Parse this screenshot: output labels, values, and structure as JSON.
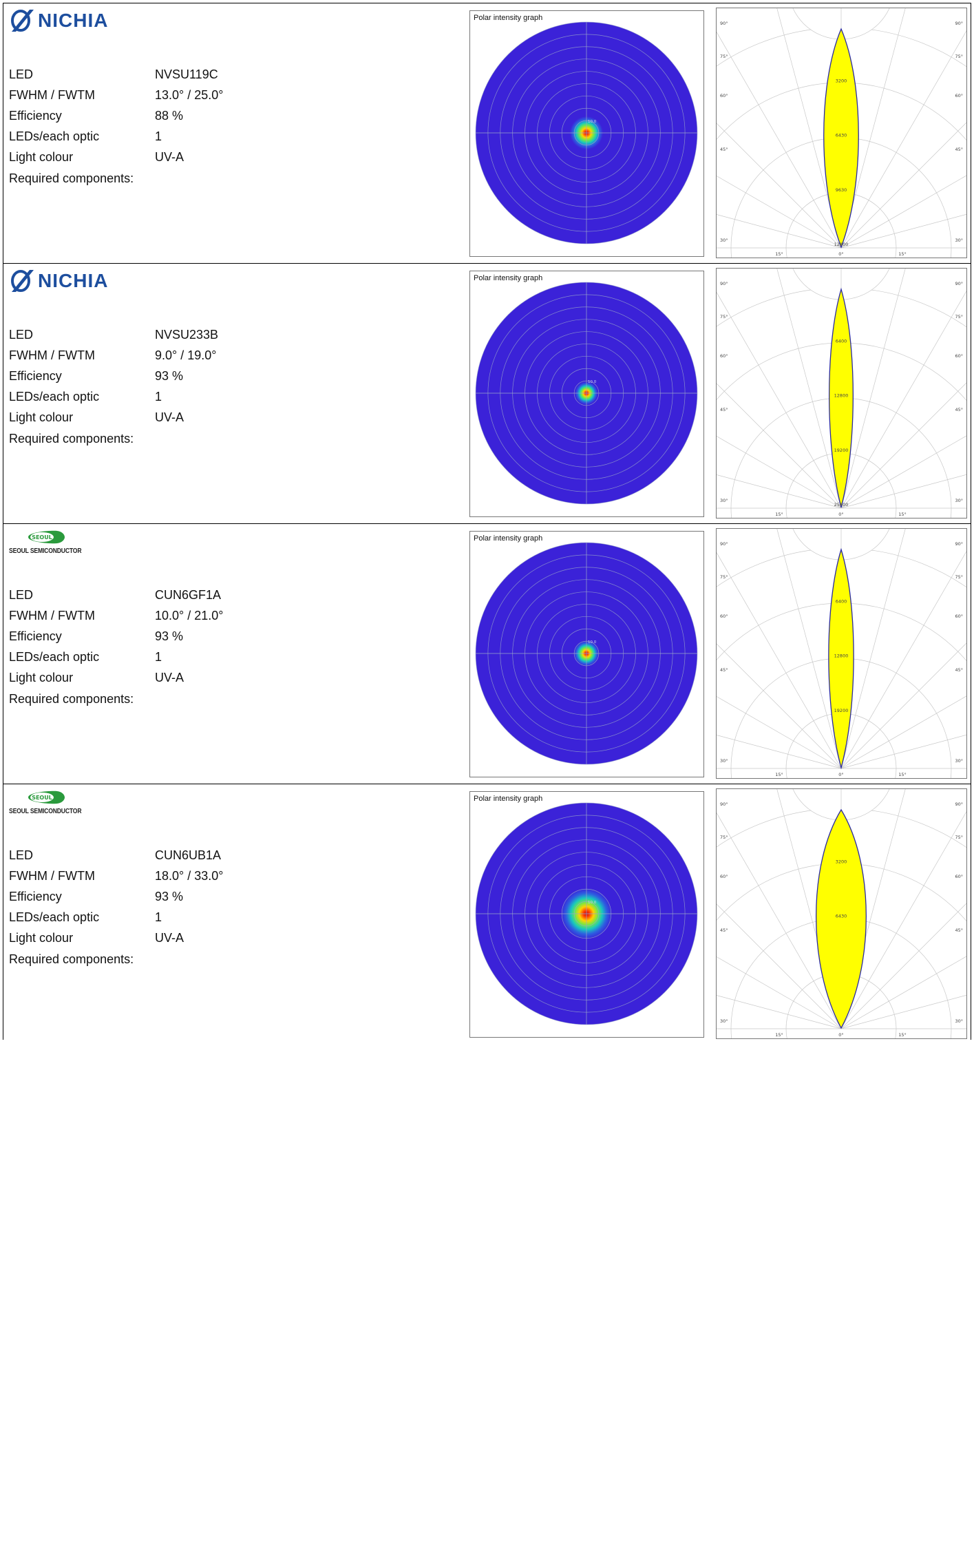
{
  "labels": {
    "led": "LED",
    "fwhm": "FWHM / FWTM",
    "efficiency": "Efficiency",
    "leds_per_optic": "LEDs/each optic",
    "light_colour": "Light colour",
    "required": "Required components:"
  },
  "polar_title": "Polar intensity graph",
  "polar_ring_label": "10.0",
  "angle_labels": [
    "90°",
    "75°",
    "60°",
    "45°",
    "30°",
    "15°",
    "0°"
  ],
  "colors": {
    "nichia_blue": "#1d4e9e",
    "seoul_green": "#2a9a3c",
    "polar_field": "#3b22d8",
    "curve_fill": "#ffff00",
    "curve_stroke": "#2a2aa0"
  },
  "rows": [
    {
      "brand": "NICHIA",
      "led": "NVSU119C",
      "fwhm": "13.0° / 25.0°",
      "efficiency": "88 %",
      "leds_per_optic": "1",
      "light_colour": "UV-A",
      "spot_size": 0.13,
      "curve_half_width_deg": 3.2,
      "curve_labels": [
        "3200",
        "6430",
        "9630",
        "12800"
      ]
    },
    {
      "brand": "NICHIA",
      "led": "NVSU233B",
      "fwhm": "9.0° / 19.0°",
      "efficiency": "93 %",
      "leds_per_optic": "1",
      "light_colour": "UV-A",
      "spot_size": 0.09,
      "curve_half_width_deg": 2.2,
      "curve_labels": [
        "6400",
        "12800",
        "19200",
        "25600"
      ]
    },
    {
      "brand": "SEOUL SEMICONDUCTOR",
      "badge": "SEOUL",
      "led": "CUN6GF1A",
      "fwhm": "10.0° / 21.0°",
      "efficiency": "93 %",
      "leds_per_optic": "1",
      "light_colour": "UV-A",
      "spot_size": 0.1,
      "curve_half_width_deg": 2.3,
      "curve_labels": [
        "6400",
        "12800",
        "19200"
      ]
    },
    {
      "brand": "SEOUL SEMICONDUCTOR",
      "badge": "SEOUL",
      "led": "CUN6UB1A",
      "fwhm": "18.0° / 33.0°",
      "efficiency": "93 %",
      "leds_per_optic": "1",
      "light_colour": "UV-A",
      "spot_size": 0.2,
      "curve_half_width_deg": 4.6,
      "curve_labels": [
        "3200",
        "6430"
      ]
    }
  ]
}
